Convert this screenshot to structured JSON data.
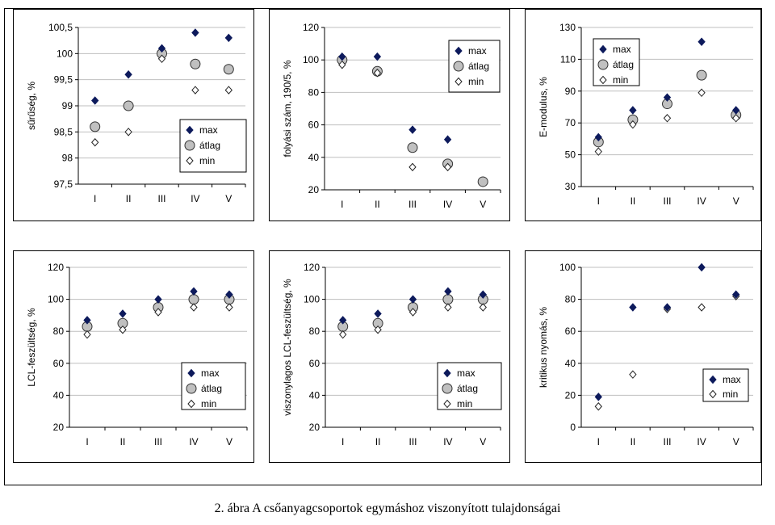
{
  "caption": "2. ábra A csőanyagcsoportok egymáshoz viszonyított tulajdonságai",
  "style": {
    "max_color": "#0d1a5c",
    "atlag_fill": "#c0c0c0",
    "min_fill": "#ffffff",
    "grid_color": "#bfbfbf"
  },
  "chart_data": [
    {
      "type": "scatter",
      "ylabel": "sűrűség, %",
      "categories": [
        "I",
        "II",
        "III",
        "IV",
        "V"
      ],
      "ylim": [
        97.5,
        100.5
      ],
      "yticks": [
        "97,5",
        "98",
        "98,5",
        "99",
        "99,5",
        "100",
        "100,5"
      ],
      "grid": true,
      "legend": "lower-right",
      "series": [
        {
          "name": "max",
          "marker": "diamond",
          "values": [
            99.1,
            99.6,
            100.1,
            100.4,
            100.3
          ]
        },
        {
          "name": "átlag",
          "marker": "circle",
          "values": [
            98.6,
            99.0,
            100.0,
            99.8,
            99.7
          ]
        },
        {
          "name": "min",
          "marker": "open-diamond",
          "values": [
            98.3,
            98.5,
            99.9,
            99.3,
            99.3
          ]
        }
      ]
    },
    {
      "type": "scatter",
      "ylabel": "folyási szám, 190/5, %",
      "categories": [
        "I",
        "II",
        "III",
        "IV",
        "V"
      ],
      "ylim": [
        20,
        120
      ],
      "yticks": [
        "20",
        "40",
        "60",
        "80",
        "100",
        "120"
      ],
      "grid": true,
      "legend": "top-right",
      "series": [
        {
          "name": "max",
          "marker": "diamond",
          "values": [
            102,
            102,
            57,
            51,
            null
          ]
        },
        {
          "name": "átlag",
          "marker": "circle",
          "values": [
            100,
            93,
            46,
            36,
            25
          ]
        },
        {
          "name": "min",
          "marker": "open-diamond",
          "values": [
            97,
            92,
            34,
            34,
            null
          ]
        }
      ]
    },
    {
      "type": "scatter",
      "ylabel": "E-modulus, %",
      "categories": [
        "I",
        "II",
        "III",
        "IV",
        "V"
      ],
      "ylim": [
        30,
        130
      ],
      "yticks": [
        "30",
        "50",
        "70",
        "90",
        "110",
        "130"
      ],
      "grid": true,
      "legend": "top-left",
      "series": [
        {
          "name": "max",
          "marker": "diamond",
          "values": [
            61,
            78,
            86,
            121,
            78
          ]
        },
        {
          "name": "átlag",
          "marker": "circle",
          "values": [
            58,
            72,
            82,
            100,
            75
          ]
        },
        {
          "name": "min",
          "marker": "open-diamond",
          "values": [
            52,
            69,
            73,
            89,
            73
          ]
        }
      ]
    },
    {
      "type": "scatter",
      "ylabel": "LCL-feszültség, %",
      "categories": [
        "I",
        "II",
        "III",
        "IV",
        "V"
      ],
      "ylim": [
        20,
        120
      ],
      "yticks": [
        "20",
        "40",
        "60",
        "80",
        "100",
        "120"
      ],
      "grid": true,
      "legend": "lower-right",
      "series": [
        {
          "name": "max",
          "marker": "diamond",
          "values": [
            87,
            91,
            100,
            105,
            103
          ]
        },
        {
          "name": "átlag",
          "marker": "circle",
          "values": [
            83,
            85,
            95,
            100,
            100
          ]
        },
        {
          "name": "min",
          "marker": "open-diamond",
          "values": [
            78,
            81,
            92,
            95,
            95
          ]
        }
      ]
    },
    {
      "type": "scatter",
      "ylabel": "viszonylagos LCL-feszültség, %",
      "categories": [
        "I",
        "II",
        "III",
        "IV",
        "V"
      ],
      "ylim": [
        20,
        120
      ],
      "yticks": [
        "20",
        "40",
        "60",
        "80",
        "100",
        "120"
      ],
      "grid": true,
      "legend": "lower-right",
      "series": [
        {
          "name": "max",
          "marker": "diamond",
          "values": [
            87,
            91,
            100,
            105,
            103
          ]
        },
        {
          "name": "átlag",
          "marker": "circle",
          "values": [
            83,
            85,
            95,
            100,
            100
          ]
        },
        {
          "name": "min",
          "marker": "open-diamond",
          "values": [
            78,
            81,
            92,
            95,
            95
          ]
        }
      ]
    },
    {
      "type": "scatter",
      "ylabel": "kritikus nyomás, %",
      "categories": [
        "I",
        "II",
        "III",
        "IV",
        "V"
      ],
      "ylim": [
        0,
        100
      ],
      "yticks": [
        "0",
        "20",
        "40",
        "60",
        "80",
        "100"
      ],
      "grid": true,
      "legend": "lower-right",
      "series": [
        {
          "name": "max",
          "marker": "diamond",
          "values": [
            19,
            75,
            75,
            100,
            83
          ]
        },
        {
          "name": "min",
          "marker": "open-diamond",
          "values": [
            13,
            33,
            74,
            75,
            82
          ]
        }
      ]
    }
  ]
}
